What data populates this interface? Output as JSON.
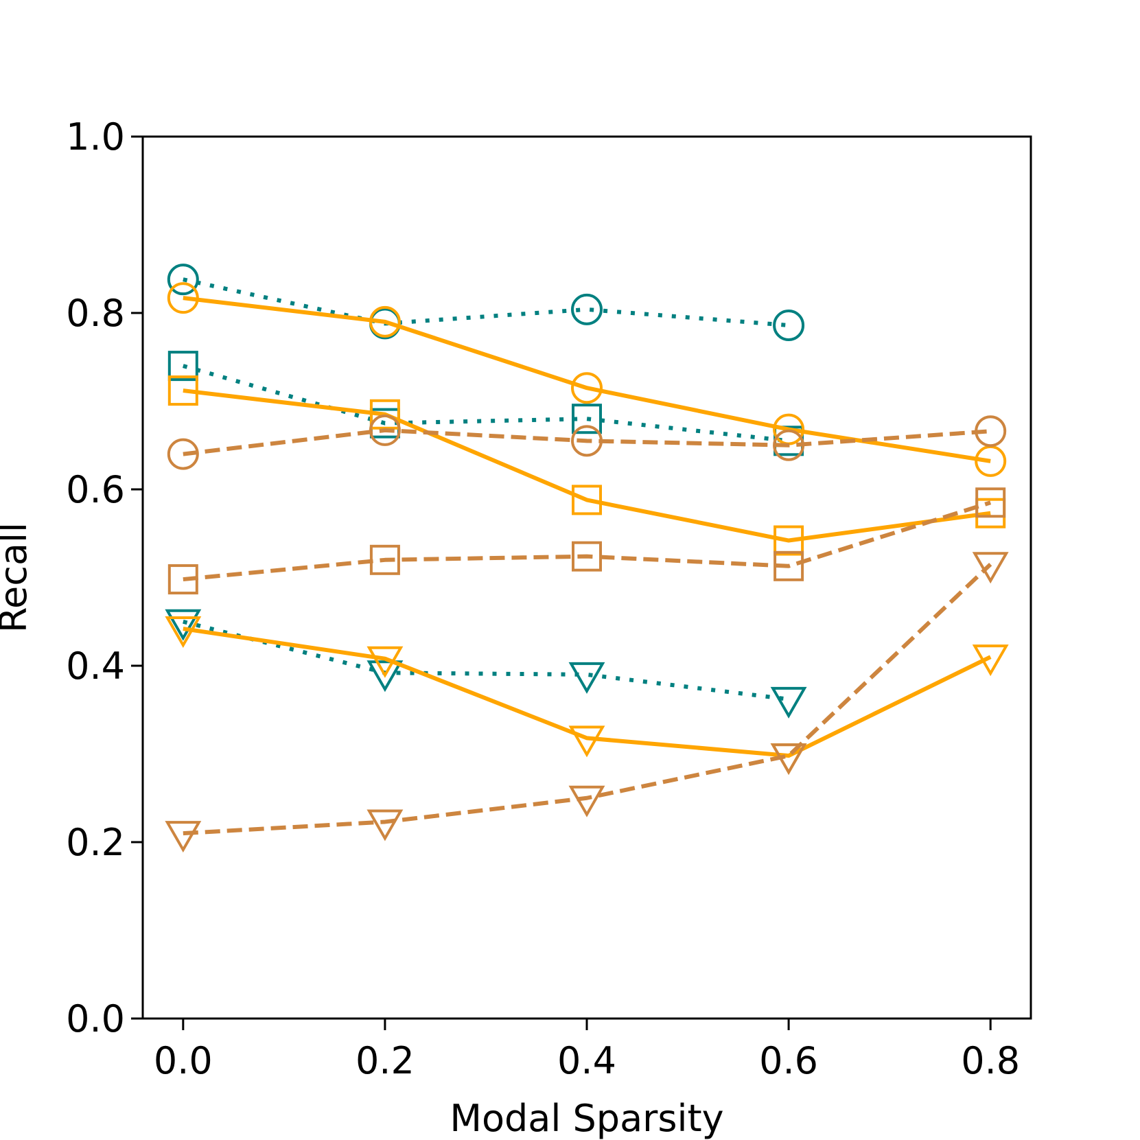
{
  "chart_data": {
    "type": "line",
    "title": "",
    "xlabel": "Modal Sparsity",
    "ylabel": "Recall",
    "xlim": [
      -0.04,
      0.84
    ],
    "ylim": [
      0.0,
      1.0
    ],
    "xticks": [
      "0.0",
      "0.2",
      "0.4",
      "0.6",
      "0.8"
    ],
    "yticks": [
      "0.0",
      "0.2",
      "0.4",
      "0.6",
      "0.8",
      "1.0"
    ],
    "grid": false,
    "legend": "none",
    "series": [
      {
        "name": "teal-circle",
        "color": "#008080",
        "linestyle": "dotted",
        "marker": "circle",
        "x": [
          0.0,
          0.2,
          0.4,
          0.6
        ],
        "values": [
          0.838,
          0.788,
          0.804,
          0.786
        ]
      },
      {
        "name": "teal-square",
        "color": "#008080",
        "linestyle": "dotted",
        "marker": "square",
        "x": [
          0.0,
          0.2,
          0.4,
          0.6
        ],
        "values": [
          0.74,
          0.675,
          0.68,
          0.655
        ]
      },
      {
        "name": "teal-triangle",
        "color": "#008080",
        "linestyle": "dotted",
        "marker": "triangle-down",
        "x": [
          0.0,
          0.2,
          0.4,
          0.6
        ],
        "values": [
          0.45,
          0.392,
          0.39,
          0.362
        ]
      },
      {
        "name": "orange-circle",
        "color": "#FFA500",
        "linestyle": "solid",
        "marker": "circle",
        "x": [
          0.0,
          0.2,
          0.4,
          0.6,
          0.8
        ],
        "values": [
          0.817,
          0.79,
          0.715,
          0.668,
          0.632
        ]
      },
      {
        "name": "orange-square",
        "color": "#FFA500",
        "linestyle": "solid",
        "marker": "square",
        "x": [
          0.0,
          0.2,
          0.4,
          0.6,
          0.8
        ],
        "values": [
          0.712,
          0.685,
          0.588,
          0.542,
          0.573
        ]
      },
      {
        "name": "orange-triangle",
        "color": "#FFA500",
        "linestyle": "solid",
        "marker": "triangle-down",
        "x": [
          0.0,
          0.2,
          0.4,
          0.6,
          0.8
        ],
        "values": [
          0.442,
          0.408,
          0.318,
          0.298,
          0.41
        ]
      },
      {
        "name": "peru-circle",
        "color": "#CD853F",
        "linestyle": "dashed",
        "marker": "circle",
        "x": [
          0.0,
          0.2,
          0.4,
          0.6,
          0.8
        ],
        "values": [
          0.64,
          0.667,
          0.655,
          0.65,
          0.666
        ]
      },
      {
        "name": "peru-square",
        "color": "#CD853F",
        "linestyle": "dashed",
        "marker": "square",
        "x": [
          0.0,
          0.2,
          0.4,
          0.6,
          0.8
        ],
        "values": [
          0.498,
          0.52,
          0.524,
          0.513,
          0.585
        ]
      },
      {
        "name": "peru-triangle",
        "color": "#CD853F",
        "linestyle": "dashed",
        "marker": "triangle-down",
        "x": [
          0.0,
          0.2,
          0.4,
          0.6,
          0.8
        ],
        "values": [
          0.21,
          0.223,
          0.25,
          0.298,
          0.515
        ]
      }
    ]
  }
}
